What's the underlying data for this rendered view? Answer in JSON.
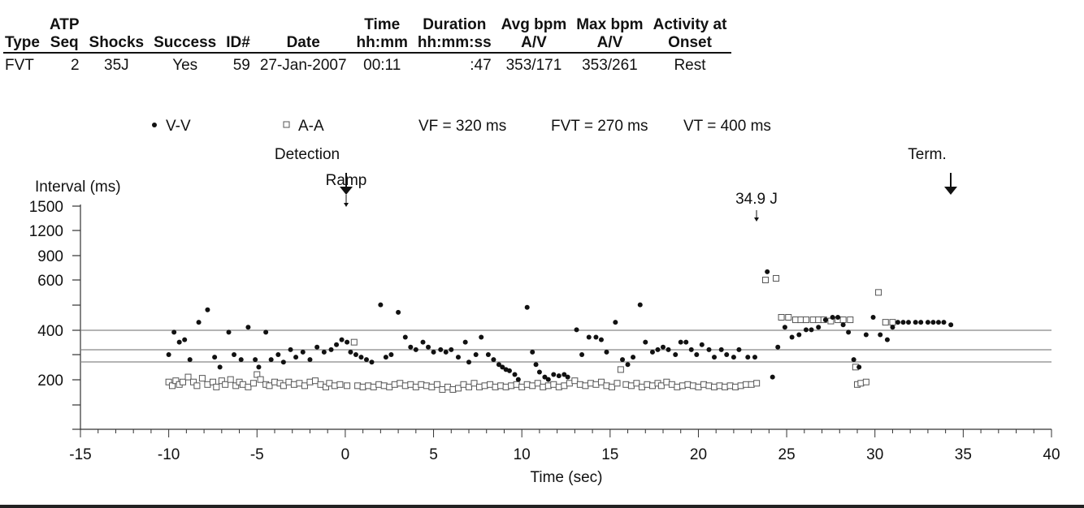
{
  "episode_table": {
    "headers": [
      {
        "l1": "Type",
        "l2": ""
      },
      {
        "l1": "ATP",
        "l2": "Seq"
      },
      {
        "l1": "Shocks",
        "l2": ""
      },
      {
        "l1": "Success",
        "l2": ""
      },
      {
        "l1": "ID#",
        "l2": ""
      },
      {
        "l1": "Date",
        "l2": ""
      },
      {
        "l1": "Time",
        "l2": "hh:mm"
      },
      {
        "l1": "Duration",
        "l2": "hh:mm:ss"
      },
      {
        "l1": "Avg bpm",
        "l2": "A/V"
      },
      {
        "l1": "Max bpm",
        "l2": "A/V"
      },
      {
        "l1": "Activity at",
        "l2": "Onset"
      }
    ],
    "row": [
      "FVT",
      "2",
      "35J",
      "Yes",
      "59",
      "27-Jan-2007",
      "00:11",
      ":47",
      "353/171",
      "353/261",
      "Rest"
    ]
  },
  "chart_data": {
    "type": "scatter",
    "title": "",
    "xlabel": "Time (sec)",
    "ylabel": "Interval (ms)",
    "xlim": [
      -15,
      40
    ],
    "x_ticks": [
      "-15",
      "-10",
      "-5",
      "0",
      "5",
      "10",
      "15",
      "20",
      "25",
      "30",
      "35",
      "40"
    ],
    "y_ticks": [
      {
        "label": "1500",
        "value": 1500
      },
      {
        "label": "1200",
        "value": 1200
      },
      {
        "label": "900",
        "value": 900
      },
      {
        "label": "600",
        "value": 600
      },
      {
        "label": "",
        "value": 500
      },
      {
        "label": "400",
        "value": 400
      },
      {
        "label": "",
        "value": 300
      },
      {
        "label": "200",
        "value": 200
      },
      {
        "label": "",
        "value": 100
      },
      {
        "label": "",
        "value": 0
      }
    ],
    "legend": [
      {
        "name": "V-V",
        "symbol": "•",
        "marker": "filled-circle"
      },
      {
        "name": "A-A",
        "symbol": "□",
        "marker": "open-square"
      }
    ],
    "zone_texts": [
      "VF = 320 ms",
      "FVT = 270 ms",
      "VT = 400 ms"
    ],
    "zones": [
      {
        "name": "VT",
        "value": 400
      },
      {
        "name": "VF",
        "value": 320
      },
      {
        "name": "FVT",
        "value": 270
      }
    ],
    "annotations": [
      {
        "label1": "Detection",
        "label2": "",
        "x": 0,
        "kind": "arrow-large"
      },
      {
        "label1": "Ramp",
        "label2": "",
        "x": 0,
        "kind": "arrow-small"
      },
      {
        "label1": "34.9 J",
        "label2": "",
        "x": 23.3,
        "kind": "arrow-small"
      },
      {
        "label1": "Term.",
        "label2": "",
        "x": 34.3,
        "kind": "arrow-large"
      }
    ],
    "series": [
      {
        "name": "V-V",
        "points": [
          [
            -10,
            300
          ],
          [
            -9.7,
            390
          ],
          [
            -9.4,
            350
          ],
          [
            -9.1,
            360
          ],
          [
            -8.8,
            280
          ],
          [
            -8.3,
            430
          ],
          [
            -7.8,
            480
          ],
          [
            -7.4,
            290
          ],
          [
            -7.1,
            250
          ],
          [
            -6.6,
            390
          ],
          [
            -6.3,
            300
          ],
          [
            -5.9,
            280
          ],
          [
            -5.5,
            410
          ],
          [
            -5.1,
            280
          ],
          [
            -4.9,
            250
          ],
          [
            -4.5,
            390
          ],
          [
            -4.2,
            280
          ],
          [
            -3.8,
            300
          ],
          [
            -3.5,
            270
          ],
          [
            -3.1,
            320
          ],
          [
            -2.8,
            290
          ],
          [
            -2.4,
            310
          ],
          [
            -2.0,
            280
          ],
          [
            -1.6,
            330
          ],
          [
            -1.2,
            310
          ],
          [
            -0.8,
            320
          ],
          [
            -0.5,
            340
          ],
          [
            -0.2,
            360
          ],
          [
            0.1,
            350
          ],
          [
            0.3,
            310
          ],
          [
            0.6,
            300
          ],
          [
            0.9,
            290
          ],
          [
            1.2,
            280
          ],
          [
            1.5,
            270
          ],
          [
            2.0,
            500
          ],
          [
            2.3,
            290
          ],
          [
            2.6,
            300
          ],
          [
            3.0,
            470
          ],
          [
            3.4,
            370
          ],
          [
            3.7,
            330
          ],
          [
            4.0,
            320
          ],
          [
            4.4,
            350
          ],
          [
            4.7,
            330
          ],
          [
            5.0,
            310
          ],
          [
            5.4,
            320
          ],
          [
            5.7,
            310
          ],
          [
            6.0,
            320
          ],
          [
            6.4,
            290
          ],
          [
            6.8,
            350
          ],
          [
            7.0,
            270
          ],
          [
            7.4,
            300
          ],
          [
            7.7,
            370
          ],
          [
            8.1,
            300
          ],
          [
            8.4,
            280
          ],
          [
            8.7,
            260
          ],
          [
            8.9,
            250
          ],
          [
            9.1,
            240
          ],
          [
            9.3,
            235
          ],
          [
            9.6,
            220
          ],
          [
            9.8,
            200
          ],
          [
            10.3,
            490
          ],
          [
            10.6,
            310
          ],
          [
            10.8,
            260
          ],
          [
            11.0,
            230
          ],
          [
            11.3,
            210
          ],
          [
            11.5,
            200
          ],
          [
            11.8,
            220
          ],
          [
            12.1,
            215
          ],
          [
            12.4,
            220
          ],
          [
            12.6,
            210
          ],
          [
            13.1,
            400
          ],
          [
            13.4,
            300
          ],
          [
            13.8,
            370
          ],
          [
            14.2,
            370
          ],
          [
            14.5,
            360
          ],
          [
            14.8,
            310
          ],
          [
            15.3,
            430
          ],
          [
            15.7,
            280
          ],
          [
            16.0,
            260
          ],
          [
            16.3,
            290
          ],
          [
            16.7,
            500
          ],
          [
            17.0,
            350
          ],
          [
            17.4,
            310
          ],
          [
            17.7,
            320
          ],
          [
            18.0,
            330
          ],
          [
            18.3,
            320
          ],
          [
            18.7,
            300
          ],
          [
            19.0,
            350
          ],
          [
            19.3,
            350
          ],
          [
            19.6,
            320
          ],
          [
            19.9,
            300
          ],
          [
            20.2,
            340
          ],
          [
            20.6,
            320
          ],
          [
            20.9,
            290
          ],
          [
            21.3,
            320
          ],
          [
            21.6,
            300
          ],
          [
            22.0,
            290
          ],
          [
            22.3,
            320
          ],
          [
            22.8,
            290
          ],
          [
            23.2,
            290
          ],
          [
            23.9,
            700
          ],
          [
            24.2,
            210
          ],
          [
            24.5,
            330
          ],
          [
            24.9,
            410
          ],
          [
            25.3,
            370
          ],
          [
            25.7,
            380
          ],
          [
            26.1,
            400
          ],
          [
            26.4,
            400
          ],
          [
            26.8,
            410
          ],
          [
            27.2,
            440
          ],
          [
            27.6,
            450
          ],
          [
            27.9,
            450
          ],
          [
            28.2,
            420
          ],
          [
            28.5,
            390
          ],
          [
            28.8,
            280
          ],
          [
            29.1,
            250
          ],
          [
            29.5,
            380
          ],
          [
            29.9,
            450
          ],
          [
            30.3,
            380
          ],
          [
            30.7,
            360
          ],
          [
            31.0,
            410
          ],
          [
            31.3,
            430
          ],
          [
            31.6,
            430
          ],
          [
            31.9,
            430
          ],
          [
            32.3,
            430
          ],
          [
            32.6,
            430
          ],
          [
            33.0,
            430
          ],
          [
            33.3,
            430
          ],
          [
            33.6,
            430
          ],
          [
            33.9,
            430
          ],
          [
            34.3,
            420
          ]
        ]
      },
      {
        "name": "A-A",
        "points": [
          [
            -10,
            190
          ],
          [
            -9.8,
            175
          ],
          [
            -9.6,
            195
          ],
          [
            -9.4,
            180
          ],
          [
            -9.2,
            190
          ],
          [
            -8.9,
            210
          ],
          [
            -8.6,
            190
          ],
          [
            -8.4,
            175
          ],
          [
            -8.1,
            205
          ],
          [
            -7.8,
            180
          ],
          [
            -7.5,
            190
          ],
          [
            -7.3,
            170
          ],
          [
            -7.0,
            195
          ],
          [
            -6.8,
            180
          ],
          [
            -6.5,
            200
          ],
          [
            -6.2,
            175
          ],
          [
            -6.0,
            190
          ],
          [
            -5.8,
            180
          ],
          [
            -5.5,
            170
          ],
          [
            -5.2,
            185
          ],
          [
            -5.0,
            220
          ],
          [
            -4.8,
            200
          ],
          [
            -4.5,
            180
          ],
          [
            -4.3,
            175
          ],
          [
            -4.0,
            190
          ],
          [
            -3.7,
            185
          ],
          [
            -3.5,
            175
          ],
          [
            -3.2,
            190
          ],
          [
            -2.9,
            180
          ],
          [
            -2.6,
            185
          ],
          [
            -2.3,
            175
          ],
          [
            -2.0,
            190
          ],
          [
            -1.7,
            195
          ],
          [
            -1.4,
            180
          ],
          [
            -1.1,
            170
          ],
          [
            -0.9,
            185
          ],
          [
            -0.6,
            175
          ],
          [
            -0.3,
            180
          ],
          [
            0.1,
            175
          ],
          [
            0.5,
            350
          ],
          [
            0.7,
            175
          ],
          [
            1.0,
            170
          ],
          [
            1.3,
            175
          ],
          [
            1.6,
            170
          ],
          [
            1.9,
            180
          ],
          [
            2.2,
            175
          ],
          [
            2.5,
            170
          ],
          [
            2.8,
            180
          ],
          [
            3.1,
            185
          ],
          [
            3.4,
            175
          ],
          [
            3.7,
            180
          ],
          [
            4.0,
            170
          ],
          [
            4.3,
            180
          ],
          [
            4.6,
            175
          ],
          [
            4.9,
            170
          ],
          [
            5.2,
            180
          ],
          [
            5.5,
            160
          ],
          [
            5.8,
            170
          ],
          [
            6.1,
            160
          ],
          [
            6.4,
            165
          ],
          [
            6.7,
            180
          ],
          [
            7.0,
            170
          ],
          [
            7.3,
            185
          ],
          [
            7.6,
            170
          ],
          [
            7.9,
            175
          ],
          [
            8.2,
            180
          ],
          [
            8.5,
            170
          ],
          [
            8.8,
            175
          ],
          [
            9.1,
            170
          ],
          [
            9.4,
            175
          ],
          [
            9.7,
            180
          ],
          [
            10.0,
            170
          ],
          [
            10.3,
            180
          ],
          [
            10.6,
            175
          ],
          [
            10.9,
            185
          ],
          [
            11.2,
            170
          ],
          [
            11.5,
            175
          ],
          [
            11.8,
            180
          ],
          [
            12.1,
            170
          ],
          [
            12.4,
            175
          ],
          [
            12.7,
            185
          ],
          [
            13.0,
            195
          ],
          [
            13.3,
            180
          ],
          [
            13.6,
            175
          ],
          [
            13.9,
            185
          ],
          [
            14.2,
            180
          ],
          [
            14.5,
            190
          ],
          [
            14.8,
            175
          ],
          [
            15.1,
            170
          ],
          [
            15.4,
            185
          ],
          [
            15.6,
            240
          ],
          [
            15.9,
            180
          ],
          [
            16.2,
            175
          ],
          [
            16.5,
            185
          ],
          [
            16.8,
            170
          ],
          [
            17.1,
            180
          ],
          [
            17.4,
            175
          ],
          [
            17.7,
            185
          ],
          [
            17.9,
            175
          ],
          [
            18.2,
            190
          ],
          [
            18.5,
            180
          ],
          [
            18.8,
            170
          ],
          [
            19.1,
            175
          ],
          [
            19.4,
            180
          ],
          [
            19.7,
            175
          ],
          [
            20.0,
            170
          ],
          [
            20.3,
            180
          ],
          [
            20.6,
            175
          ],
          [
            20.9,
            170
          ],
          [
            21.2,
            175
          ],
          [
            21.5,
            170
          ],
          [
            21.8,
            175
          ],
          [
            22.1,
            170
          ],
          [
            22.4,
            175
          ],
          [
            22.7,
            180
          ],
          [
            23.0,
            180
          ],
          [
            23.3,
            185
          ],
          [
            23.8,
            600
          ],
          [
            24.4,
            620
          ],
          [
            24.7,
            450
          ],
          [
            25.1,
            450
          ],
          [
            25.5,
            440
          ],
          [
            25.8,
            440
          ],
          [
            26.1,
            440
          ],
          [
            26.5,
            440
          ],
          [
            26.8,
            440
          ],
          [
            27.1,
            440
          ],
          [
            27.5,
            435
          ],
          [
            27.9,
            440
          ],
          [
            28.2,
            440
          ],
          [
            28.6,
            440
          ],
          [
            28.9,
            250
          ],
          [
            29.0,
            180
          ],
          [
            29.2,
            185
          ],
          [
            29.5,
            190
          ],
          [
            30.2,
            550
          ],
          [
            30.6,
            430
          ],
          [
            31.0,
            430
          ]
        ]
      }
    ]
  }
}
